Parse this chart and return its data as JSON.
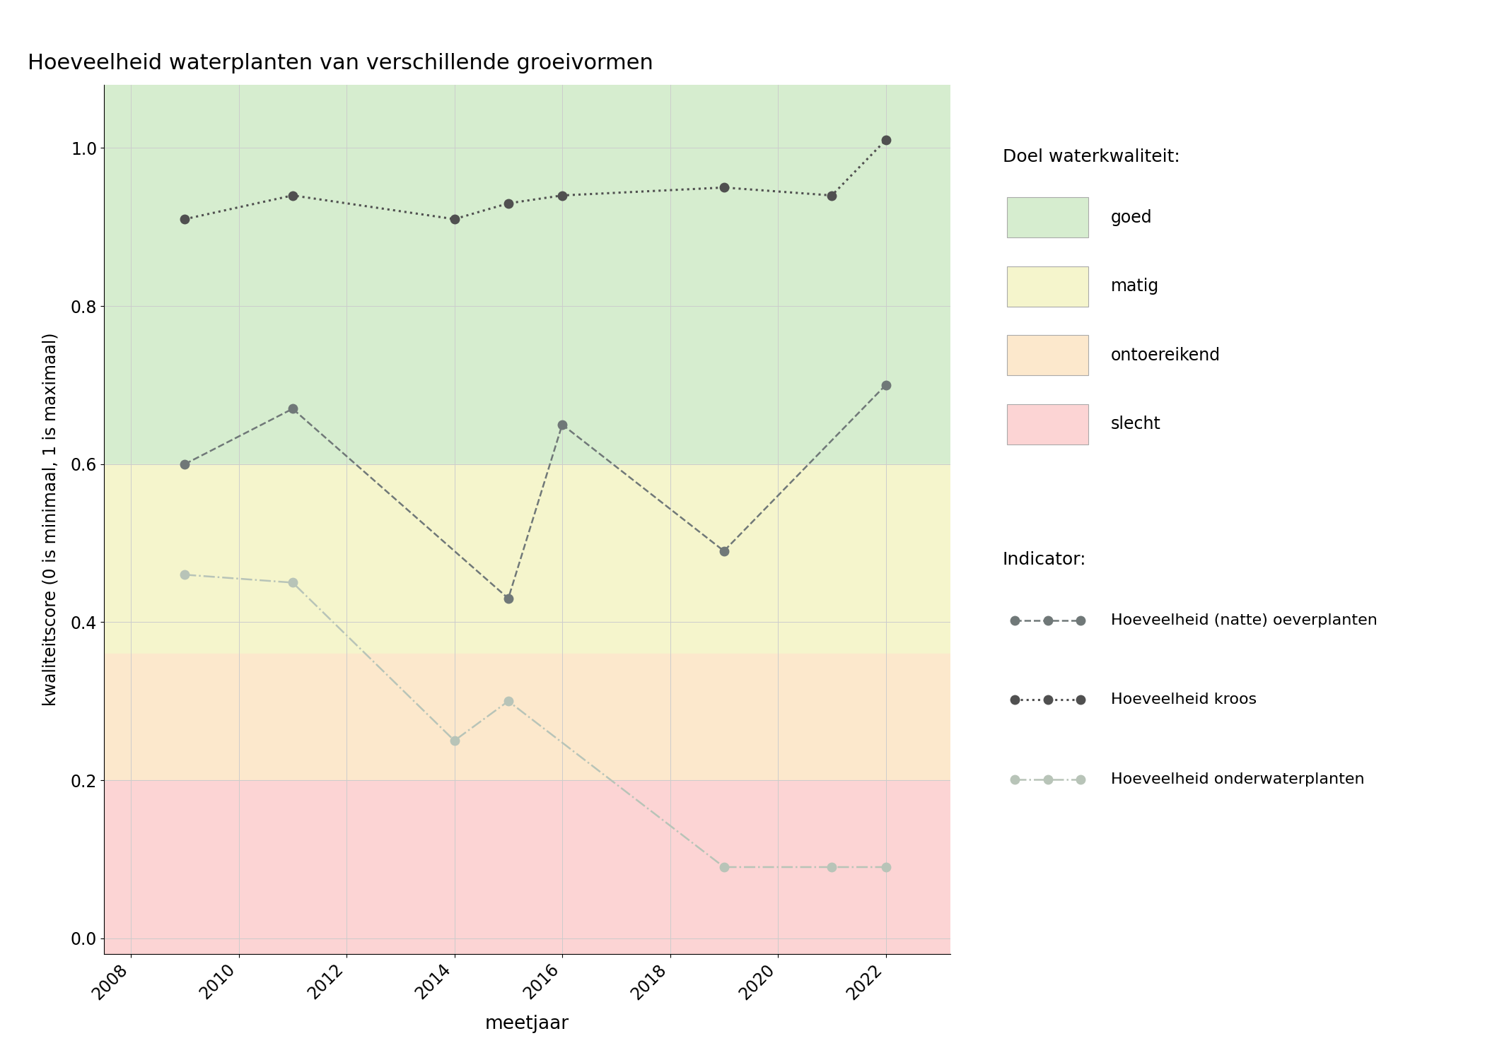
{
  "title": "Hoeveelheid waterplanten van verschillende groeivormen",
  "xlabel": "meetjaar",
  "ylabel": "kwaliteitscore (0 is minimaal, 1 is maximaal)",
  "xlim": [
    2007.5,
    2023.2
  ],
  "ylim": [
    -0.02,
    1.08
  ],
  "xticks": [
    2008,
    2010,
    2012,
    2014,
    2016,
    2018,
    2020,
    2022
  ],
  "yticks": [
    0.0,
    0.2,
    0.4,
    0.6,
    0.8,
    1.0
  ],
  "bg_goed": {
    "ymin": 0.6,
    "ymax": 1.08,
    "color": "#d6edcf"
  },
  "bg_matig": {
    "ymin": 0.36,
    "ymax": 0.6,
    "color": "#f5f5cc"
  },
  "bg_ontoereikend": {
    "ymin": 0.2,
    "ymax": 0.36,
    "color": "#fce8cc"
  },
  "bg_slecht": {
    "ymin": -0.02,
    "ymax": 0.2,
    "color": "#fcd4d4"
  },
  "series_oeverplanten": {
    "x": [
      2009,
      2011,
      2015,
      2016,
      2019,
      2022
    ],
    "y": [
      0.6,
      0.67,
      0.43,
      0.65,
      0.49,
      0.7
    ],
    "color": "#707878",
    "linestyle": "--",
    "linewidth": 1.8,
    "marker": "o",
    "markersize": 9,
    "label": "Hoeveelheid (natte) oeverplanten"
  },
  "series_kroos": {
    "x": [
      2009,
      2011,
      2014,
      2015,
      2016,
      2019,
      2021,
      2022
    ],
    "y": [
      0.91,
      0.94,
      0.91,
      0.93,
      0.94,
      0.95,
      0.94,
      1.01
    ],
    "color": "#505050",
    "linestyle": ":",
    "linewidth": 2.2,
    "marker": "o",
    "markersize": 9,
    "label": "Hoeveelheid kroos"
  },
  "series_onderwaterplanten": {
    "x": [
      2009,
      2011,
      2014,
      2015,
      2019,
      2021,
      2022
    ],
    "y": [
      0.46,
      0.45,
      0.25,
      0.3,
      0.09,
      0.09,
      0.09
    ],
    "color": "#b8c4b8",
    "linestyle": "-.",
    "linewidth": 1.8,
    "marker": "o",
    "markersize": 9,
    "label": "Hoeveelheid onderwaterplanten"
  },
  "legend_kwaliteit_title": "Doel waterkwaliteit:",
  "legend_indicator_title": "Indicator:",
  "legend_colors": {
    "goed": "#d6edcf",
    "matig": "#f5f5cc",
    "ontoereikend": "#fce8cc",
    "slecht": "#fcd4d4"
  },
  "legend_labels_kw": [
    "goed",
    "matig",
    "ontoereikend",
    "slecht"
  ],
  "grid_color": "#cccccc",
  "fig_bg_color": "#ffffff"
}
